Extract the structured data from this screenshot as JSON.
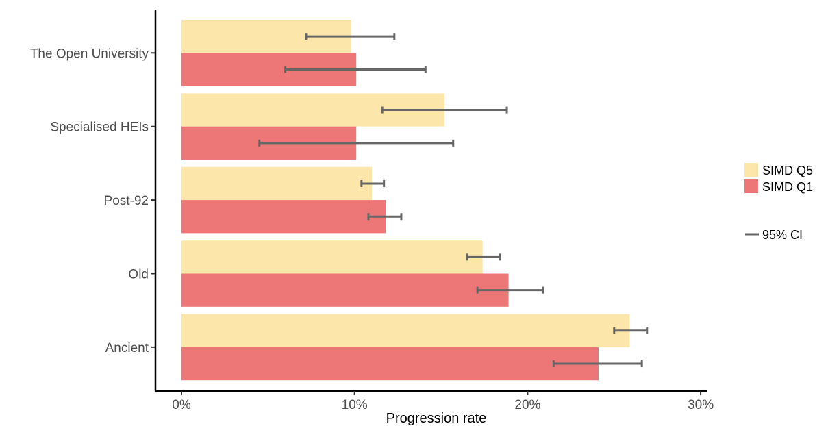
{
  "chart_data": {
    "type": "bar",
    "orientation": "horizontal",
    "categories": [
      "The Open University",
      "Specialised HEIs",
      "Post-92",
      "Old",
      "Ancient"
    ],
    "series": [
      {
        "name": "SIMD Q5",
        "color": "#fde6a9",
        "values": [
          9.8,
          15.2,
          11.0,
          17.4,
          25.9
        ],
        "ci_low": [
          7.2,
          11.6,
          10.4,
          16.5,
          25.0
        ],
        "ci_high": [
          12.3,
          18.8,
          11.7,
          18.4,
          26.9
        ]
      },
      {
        "name": "SIMD Q1",
        "color": "#ed7676",
        "values": [
          10.1,
          10.1,
          11.8,
          18.9,
          24.1
        ],
        "ci_low": [
          6.0,
          4.5,
          10.8,
          17.1,
          21.5
        ],
        "ci_high": [
          14.1,
          15.7,
          12.7,
          20.9,
          26.6
        ]
      }
    ],
    "xlabel": "Progression rate",
    "ylabel": "",
    "xlim": [
      -1.4,
      31.0
    ],
    "xticks": [
      0,
      10,
      20,
      30
    ],
    "xtick_labels": [
      "0%",
      "10%",
      "20%",
      "30%"
    ],
    "legend": {
      "position": "right",
      "entries": [
        "SIMD Q5",
        "SIMD Q1"
      ],
      "ci_label": "95% CI"
    },
    "errorbar_color": "#666666",
    "grid": false
  }
}
